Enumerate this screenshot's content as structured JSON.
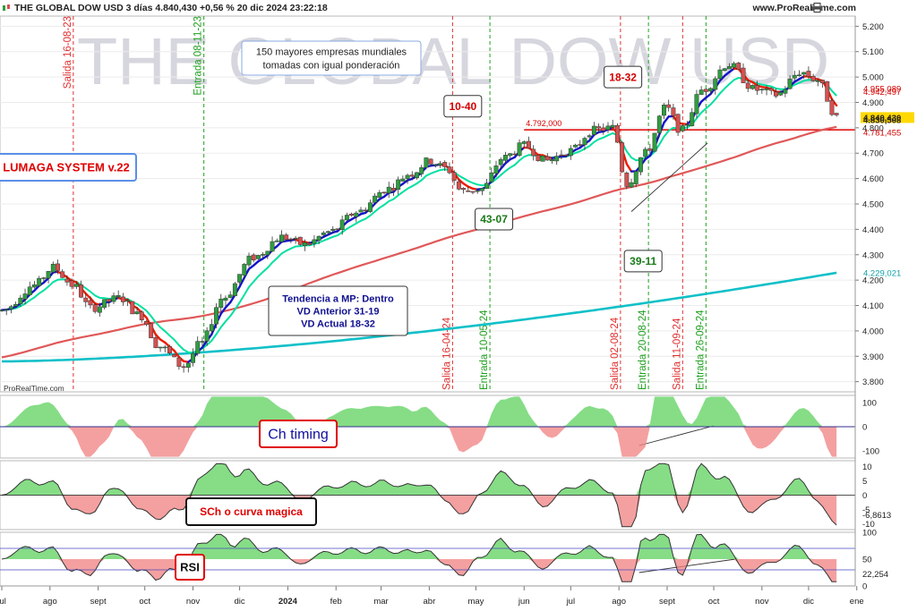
{
  "header": {
    "title": "THE GLOBAL DOW USD 3 días 4.840,430 +0,56 % 20 dic 2024 23:22:18",
    "site": "www.ProRealTime.com",
    "watermark": "THE GLOBAL DOW USD",
    "footer_brand": "ProRealTime.com"
  },
  "annotations": {
    "description_box": [
      "150 mayores empresas mundiales",
      "tomadas con igual ponderación"
    ],
    "system_box": "LUMAGA SYSTEM v.22",
    "trend_box": [
      "Tendencia a MP: Dentro",
      "VD Anterior 31-19",
      "VD Actual 18-32"
    ],
    "labels": [
      {
        "text": "10-40",
        "color": "#d40000",
        "date": "2024-04-22",
        "value": 4885
      },
      {
        "text": "18-32",
        "color": "#d40000",
        "date": "2024-08-03",
        "value": 5000
      },
      {
        "text": "43-07",
        "color": "#1a7a1a",
        "date": "2024-05-12",
        "value": 4440
      },
      {
        "text": "39-11",
        "color": "#1a7a1a",
        "date": "2024-08-16",
        "value": 4275
      }
    ],
    "level_label": {
      "text": "4.792,000",
      "value": 4792
    },
    "indicator_labels": [
      "Ch timing",
      "SCh o curva magica",
      "RSI"
    ]
  },
  "colors": {
    "candle_up": "#2e9e3e",
    "candle_down": "#d65050",
    "ma_short_blue": "#1414c8",
    "ma_short_red": "#ee1c00",
    "ma_medium": "#00e0a0",
    "ma_long": "#e05858",
    "ma_200": "#10c0c8",
    "hline": "#e00000",
    "signal_sell": "#e03030",
    "signal_buy": "#20a020",
    "osc_up": "#5ed15e",
    "osc_down": "#f08080"
  },
  "chart_data": {
    "type": "candlestick",
    "instrument": "THE GLOBAL DOW USD",
    "timeframe": "3 días",
    "last_price": 4840.43,
    "change_pct": 0.56,
    "date": "20 dic 2024",
    "time": "23:22:18",
    "x_axis": {
      "start": "2023-07-01",
      "end": "2024-12-31",
      "tick_labels": [
        {
          "label": "jul",
          "date": "2023-07-01"
        },
        {
          "label": "ago",
          "date": "2023-08-01"
        },
        {
          "label": "sept",
          "date": "2023-09-01"
        },
        {
          "label": "oct",
          "date": "2023-10-01"
        },
        {
          "label": "nov",
          "date": "2023-11-01"
        },
        {
          "label": "dic",
          "date": "2023-12-01"
        },
        {
          "label": "2024",
          "date": "2024-01-01",
          "bold": true
        },
        {
          "label": "feb",
          "date": "2024-02-01"
        },
        {
          "label": "mar",
          "date": "2024-03-01"
        },
        {
          "label": "abr",
          "date": "2024-04-01"
        },
        {
          "label": "may",
          "date": "2024-05-01"
        },
        {
          "label": "jun",
          "date": "2024-06-01"
        },
        {
          "label": "jul",
          "date": "2024-07-01"
        },
        {
          "label": "ago",
          "date": "2024-08-01"
        },
        {
          "label": "sept",
          "date": "2024-09-01"
        },
        {
          "label": "oct",
          "date": "2024-10-01"
        },
        {
          "label": "nov",
          "date": "2024-11-01"
        },
        {
          "label": "dic",
          "date": "2024-12-01"
        },
        {
          "label": "ene",
          "date": "2025-01-01"
        }
      ]
    },
    "price_axis": {
      "ylim": [
        3760,
        5240
      ],
      "ticks": [
        3800,
        3900,
        4000,
        4100,
        4200,
        4300,
        4400,
        4500,
        4600,
        4700,
        4800,
        4900,
        5000,
        5100,
        5200
      ],
      "tick_labels": [
        "3.800",
        "3.900",
        "4.000",
        "4.100",
        "4.200",
        "4.300",
        "4.400",
        "4.500",
        "4.600",
        "4.700",
        "4.800",
        "4.900",
        "5.000",
        "5.100",
        "5.200"
      ]
    },
    "price_markers": [
      {
        "label": "4.955,089",
        "value": 4955.089,
        "color": "#d40000"
      },
      {
        "label": "4.942,497",
        "value": 4942.497,
        "color": "#d40000"
      },
      {
        "label": "4.840,430",
        "value": 4840.43,
        "color": "#222222",
        "bg": "#ffd800"
      },
      {
        "label": "4.830,508",
        "value": 4830.508,
        "color": "#222222"
      },
      {
        "label": "4.781,455",
        "value": 4781.455,
        "color": "#d40000"
      },
      {
        "label": "4.229,021",
        "value": 4229.021,
        "color": "#10a0a8"
      }
    ],
    "horizontal_line": {
      "value": 4792,
      "from": "2024-06-01"
    },
    "path_anchors": [
      [
        "2023-07-01",
        4080
      ],
      [
        "2023-07-22",
        4180
      ],
      [
        "2023-08-03",
        4250
      ],
      [
        "2023-08-16",
        4180
      ],
      [
        "2023-08-27",
        4090
      ],
      [
        "2023-09-15",
        4130
      ],
      [
        "2023-09-28",
        4060
      ],
      [
        "2023-10-10",
        3940
      ],
      [
        "2023-10-26",
        3860
      ],
      [
        "2023-11-06",
        3950
      ],
      [
        "2023-11-20",
        4130
      ],
      [
        "2023-12-10",
        4290
      ],
      [
        "2023-12-28",
        4370
      ],
      [
        "2024-01-12",
        4340
      ],
      [
        "2024-01-28",
        4390
      ],
      [
        "2024-02-15",
        4470
      ],
      [
        "2024-03-05",
        4560
      ],
      [
        "2024-03-20",
        4620
      ],
      [
        "2024-04-01",
        4670
      ],
      [
        "2024-04-12",
        4640
      ],
      [
        "2024-04-22",
        4550
      ],
      [
        "2024-05-05",
        4560
      ],
      [
        "2024-05-18",
        4680
      ],
      [
        "2024-06-01",
        4730
      ],
      [
        "2024-06-15",
        4670
      ],
      [
        "2024-07-01",
        4710
      ],
      [
        "2024-07-15",
        4790
      ],
      [
        "2024-07-28",
        4800
      ],
      [
        "2024-08-06",
        4580
      ],
      [
        "2024-08-18",
        4700
      ],
      [
        "2024-08-31",
        4880
      ],
      [
        "2024-09-10",
        4790
      ],
      [
        "2024-09-24",
        4950
      ],
      [
        "2024-10-10",
        5050
      ],
      [
        "2024-10-28",
        4950
      ],
      [
        "2024-11-10",
        4930
      ],
      [
        "2024-11-26",
        5020
      ],
      [
        "2024-12-06",
        4990
      ],
      [
        "2024-12-20",
        4840
      ]
    ],
    "moving_averages": [
      {
        "type": "short_two_color",
        "colors": [
          "#1414c8",
          "#ee1c00"
        ]
      },
      {
        "type": "medium",
        "color": "#00e0a0"
      },
      {
        "type": "long",
        "color": "#e05858"
      },
      {
        "type": "very_long",
        "color": "#10c0c8",
        "last_value": 4229.021
      }
    ],
    "signals": [
      {
        "label": "Salida 16-08-23",
        "date": "2023-08-16",
        "kind": "sell"
      },
      {
        "label": "Entrada 08-11-23",
        "date": "2023-11-08",
        "kind": "buy"
      },
      {
        "label": "Salida 16-04-24",
        "date": "2024-04-16",
        "kind": "sell"
      },
      {
        "label": "Entrada 10-05-24",
        "date": "2024-05-10",
        "kind": "buy"
      },
      {
        "label": "Salida 02-08-24",
        "date": "2024-08-02",
        "kind": "sell"
      },
      {
        "label": "Entrada 20-08-24",
        "date": "2024-08-20",
        "kind": "buy"
      },
      {
        "label": "Salida 11-09-24",
        "date": "2024-09-11",
        "kind": "sell"
      },
      {
        "label": "Entrada 26-09-24",
        "date": "2024-09-26",
        "kind": "buy"
      }
    ],
    "indicators": [
      {
        "name": "Ch timing",
        "ylim": [
          -130,
          130
        ],
        "ticks": [
          100,
          0,
          -100
        ],
        "tick_labels": [
          "100",
          "0",
          "-100"
        ],
        "zero_line": 0
      },
      {
        "name": "SCh o curva magica",
        "ylim": [
          -12,
          12
        ],
        "ticks": [
          10,
          5,
          0,
          -5,
          -10
        ],
        "tick_labels": [
          "10",
          "5",
          "0",
          "-5",
          "-10"
        ],
        "last_value": -6.8613,
        "last_label": "-6,8613"
      },
      {
        "name": "RSI",
        "ylim": [
          0,
          100
        ],
        "ticks": [
          100,
          50,
          0
        ],
        "tick_labels": [
          "100",
          "50",
          "0"
        ],
        "levels": [
          70,
          30
        ],
        "last_value": 22.254,
        "last_label": "22,254"
      }
    ]
  }
}
